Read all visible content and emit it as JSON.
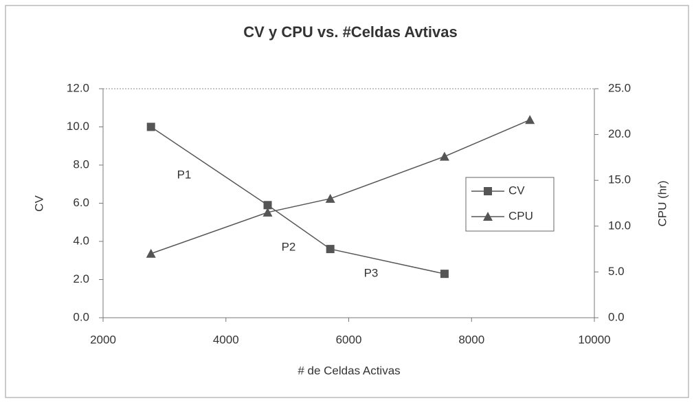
{
  "chart_data": {
    "type": "line",
    "title": "CV y CPU vs. #Celdas Avtivas",
    "x_label": "# de Celdas Activas",
    "y_label": "CV",
    "y2_label": "CPU (hr)",
    "x": [
      2780,
      4680,
      5700,
      7560,
      8950
    ],
    "series": [
      {
        "name": "CV",
        "color": "#555555",
        "marker": "square",
        "values": [
          10.0,
          5.9,
          3.6,
          2.3,
          null
        ]
      },
      {
        "name": "CPU",
        "color": "#555555",
        "marker": "triangle",
        "axis": "y2",
        "values": [
          7.0,
          11.5,
          13.0,
          17.6,
          21.6
        ]
      }
    ],
    "annotations": [
      "P1",
      "P2",
      "P3"
    ],
    "xlim": [
      2000,
      10000
    ],
    "xticks": [
      2000,
      4000,
      6000,
      8000,
      10000
    ],
    "ylim": [
      0,
      12
    ],
    "yticks": [
      {
        "value": 0,
        "label": "0.0"
      },
      {
        "value": 2,
        "label": "2.0"
      },
      {
        "value": 4,
        "label": "4.0"
      },
      {
        "value": 6,
        "label": "6.0"
      },
      {
        "value": 8,
        "label": "8.0"
      },
      {
        "value": 10,
        "label": "10.0"
      },
      {
        "value": 12,
        "label": "12.0"
      }
    ],
    "y2lim": [
      0,
      25
    ],
    "y2ticks": [
      {
        "value": 0,
        "label": "0.0"
      },
      {
        "value": 5,
        "label": "5.0"
      },
      {
        "value": 10,
        "label": "10.0"
      },
      {
        "value": 15,
        "label": "15.0"
      },
      {
        "value": 20,
        "label": "20.0"
      },
      {
        "value": 25,
        "label": "25.0"
      }
    ],
    "legend": "right",
    "grid": false
  }
}
